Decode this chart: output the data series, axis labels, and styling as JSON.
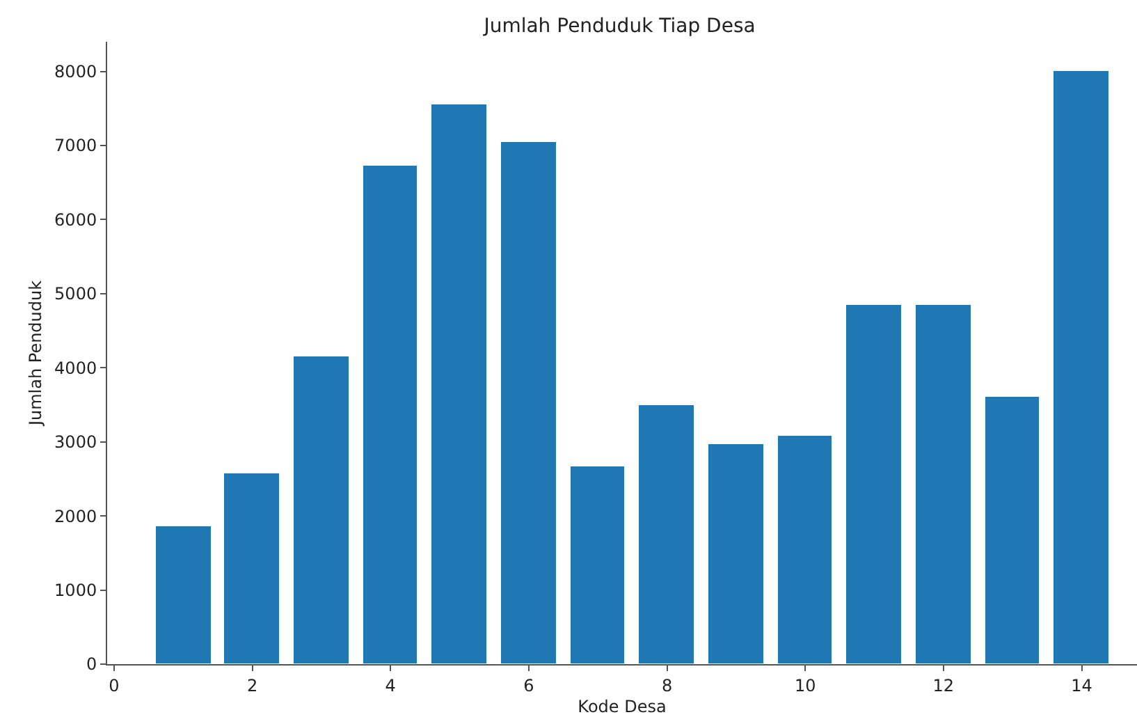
{
  "chart_data": {
    "type": "bar",
    "title": "Jumlah Penduduk Tiap Desa",
    "xlabel": "Kode Desa",
    "ylabel": "Jumlah Penduduk",
    "x": [
      1,
      2,
      3,
      4,
      5,
      6,
      7,
      8,
      9,
      10,
      11,
      12,
      13,
      14
    ],
    "values": [
      1860,
      2570,
      4160,
      6720,
      7560,
      7050,
      2660,
      3500,
      2970,
      3080,
      4850,
      4850,
      3610,
      8000
    ],
    "color": "#1f77b4",
    "xlim": [
      -0.1,
      14.8
    ],
    "xticks": [
      0,
      2,
      4,
      6,
      8,
      10,
      12,
      14
    ],
    "ylim": [
      0,
      8400
    ],
    "yticks": [
      0,
      1000,
      2000,
      3000,
      4000,
      5000,
      6000,
      7000,
      8000
    ]
  }
}
